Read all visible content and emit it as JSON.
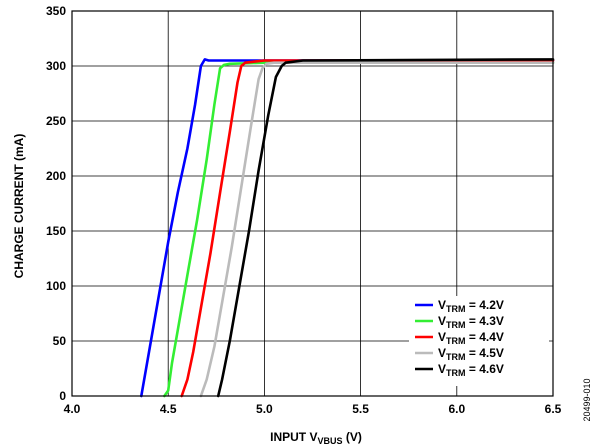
{
  "chart_data": {
    "type": "line",
    "xlabel": {
      "main": "INPUT V",
      "sub": "VBUS",
      "suffix": " (V)"
    },
    "ylabel": "CHARGE CURRENT (mA)",
    "xlim": [
      4.0,
      6.5
    ],
    "ylim": [
      0,
      350
    ],
    "x_ticks": [
      4.0,
      4.5,
      5.0,
      5.5,
      6.0,
      6.5
    ],
    "x_tick_labels": [
      "4.0",
      "4.5",
      "5.0",
      "5.5",
      "6.0",
      "6.5"
    ],
    "y_ticks": [
      0,
      50,
      100,
      150,
      200,
      250,
      300,
      350
    ],
    "y_tick_labels": [
      "0",
      "50",
      "100",
      "150",
      "200",
      "250",
      "300",
      "350"
    ],
    "grid": true,
    "legend_position": "bottom-right",
    "series": [
      {
        "label": {
          "main": "V",
          "sub": "TRM",
          "suffix": " = 4.2V"
        },
        "color": "#0000ff",
        "x": [
          4.36,
          4.4,
          4.45,
          4.5,
          4.55,
          4.6,
          4.64,
          4.67,
          4.69,
          4.71,
          4.75,
          5.0,
          6.5
        ],
        "y": [
          0,
          40,
          90,
          140,
          185,
          225,
          265,
          300,
          306,
          305,
          305,
          305,
          305
        ]
      },
      {
        "label": {
          "main": "V",
          "sub": "TRM",
          "suffix": " = 4.3V"
        },
        "color": "#33ee33",
        "x": [
          4.48,
          4.5,
          4.52,
          4.55,
          4.6,
          4.65,
          4.7,
          4.74,
          4.77,
          4.79,
          4.82,
          5.0,
          6.5
        ],
        "y": [
          0,
          5,
          30,
          60,
          110,
          160,
          215,
          265,
          298,
          301,
          302,
          303,
          303
        ]
      },
      {
        "label": {
          "main": "V",
          "sub": "TRM",
          "suffix": " = 4.4V"
        },
        "color": "#ff0000",
        "x": [
          4.57,
          4.6,
          4.63,
          4.67,
          4.72,
          4.77,
          4.82,
          4.86,
          4.88,
          4.9,
          4.95,
          5.0,
          6.5
        ],
        "y": [
          0,
          15,
          40,
          80,
          130,
          185,
          240,
          285,
          300,
          303,
          304,
          305,
          305
        ]
      },
      {
        "label": {
          "main": "V",
          "sub": "TRM",
          "suffix": " = 4.5V"
        },
        "color": "#bbbbbb",
        "x": [
          4.67,
          4.7,
          4.74,
          4.78,
          4.83,
          4.88,
          4.93,
          4.97,
          4.99,
          5.01,
          5.05,
          6.5
        ],
        "y": [
          0,
          15,
          45,
          85,
          135,
          190,
          245,
          288,
          298,
          302,
          303,
          303
        ]
      },
      {
        "label": {
          "main": "V",
          "sub": "TRM",
          "suffix": " = 4.6V"
        },
        "color": "#000000",
        "x": [
          4.76,
          4.78,
          4.82,
          4.87,
          4.92,
          4.97,
          5.02,
          5.06,
          5.09,
          5.11,
          5.2,
          6.5
        ],
        "y": [
          0,
          15,
          50,
          100,
          150,
          205,
          255,
          290,
          300,
          303,
          305,
          306
        ]
      }
    ]
  },
  "figure_code": "20499-010"
}
